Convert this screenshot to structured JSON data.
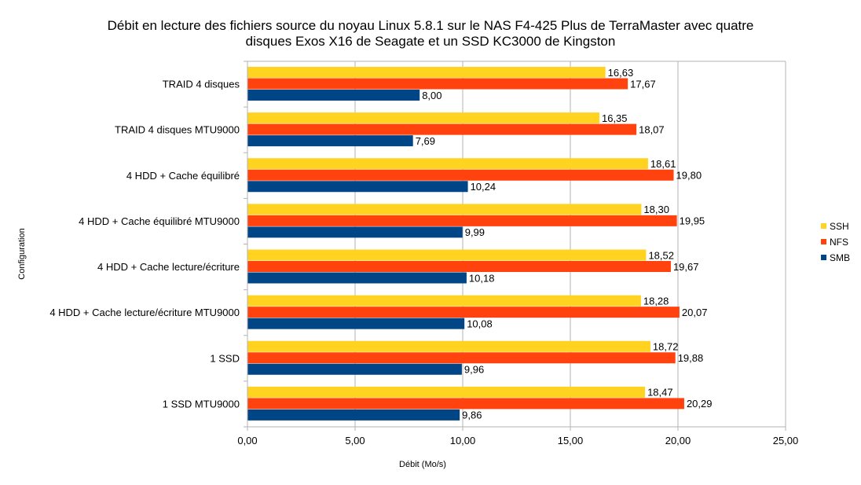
{
  "chart_data": {
    "type": "bar",
    "orientation": "horizontal",
    "title": [
      "Débit en lecture des fichiers source du noyau Linux 5.8.1 sur le NAS F4-425 Plus de TerraMaster avec quatre",
      "disques Exos X16 de Seagate et un SSD KC3000 de Kingston"
    ],
    "xlabel": "Débit (Mo/s)",
    "ylabel": "Configuration",
    "xlim": [
      0,
      25
    ],
    "xticks": [
      0,
      5,
      10,
      15,
      20,
      25
    ],
    "xtick_labels": [
      "0,00",
      "5,00",
      "10,00",
      "15,00",
      "20,00",
      "25,00"
    ],
    "grid": "vertical",
    "legend_position": "right",
    "categories": [
      "TRAID 4 disques",
      "TRAID 4 disques MTU9000",
      "4 HDD + Cache équilibré",
      "4 HDD + Cache équilibré MTU9000",
      "4 HDD + Cache lecture/écriture",
      "4 HDD + Cache lecture/écriture  MTU9000",
      "1 SSD",
      "1 SSD MTU9000"
    ],
    "series": [
      {
        "name": "SSH",
        "color": "#ffd320",
        "values": [
          16.63,
          16.35,
          18.61,
          18.3,
          18.52,
          18.28,
          18.72,
          18.47
        ],
        "labels": [
          "16,63",
          "16,35",
          "18,61",
          "18,30",
          "18,52",
          "18,28",
          "18,72",
          "18,47"
        ]
      },
      {
        "name": "NFS",
        "color": "#ff420e",
        "values": [
          17.67,
          18.07,
          19.8,
          19.95,
          19.67,
          20.07,
          19.88,
          20.29
        ],
        "labels": [
          "17,67",
          "18,07",
          "19,80",
          "19,95",
          "19,67",
          "20,07",
          "19,88",
          "20,29"
        ]
      },
      {
        "name": "SMB",
        "color": "#004586",
        "values": [
          8.0,
          7.69,
          10.24,
          9.99,
          10.18,
          10.08,
          9.96,
          9.86
        ],
        "labels": [
          "8,00",
          "7,69",
          "10,24",
          "9,99",
          "10,18",
          "10,08",
          "9,96",
          "9,86"
        ]
      }
    ]
  }
}
